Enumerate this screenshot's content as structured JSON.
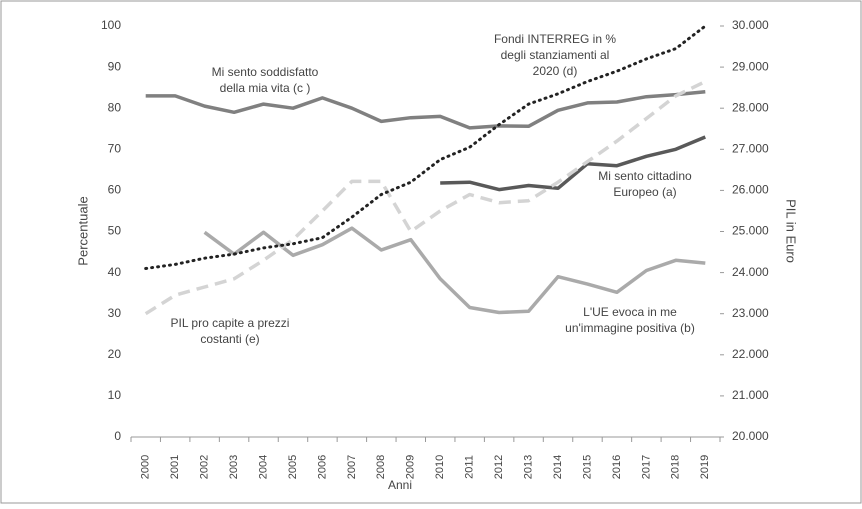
{
  "chart_data": {
    "type": "line",
    "xlabel": "Anni",
    "ylabel": "Percentuale",
    "y2label": "PIL in Euro",
    "categories": [
      "2000",
      "2001",
      "2002",
      "2003",
      "2004",
      "2005",
      "2006",
      "2007",
      "2008",
      "2009",
      "2010",
      "2011",
      "2012",
      "2013",
      "2014",
      "2015",
      "2016",
      "2017",
      "2018",
      "2019"
    ],
    "ylim": [
      0,
      100
    ],
    "yticks": [
      0,
      10,
      20,
      30,
      40,
      50,
      60,
      70,
      80,
      90,
      100
    ],
    "y2lim": [
      20000,
      30000
    ],
    "y2ticks": [
      {
        "value": 20000,
        "label": "20.000"
      },
      {
        "value": 21000,
        "label": "21.000"
      },
      {
        "value": 22000,
        "label": "22.000"
      },
      {
        "value": 23000,
        "label": "23.000"
      },
      {
        "value": 24000,
        "label": "24.000"
      },
      {
        "value": 25000,
        "label": "25.000"
      },
      {
        "value": 26000,
        "label": "26.000"
      },
      {
        "value": 27000,
        "label": "27.000"
      },
      {
        "value": 28000,
        "label": "28.000"
      },
      {
        "value": 29000,
        "label": "29.000"
      },
      {
        "value": 30000,
        "label": "30.000"
      }
    ],
    "series": [
      {
        "color": "#808080",
        "style": "solid",
        "values": [
          83,
          83,
          80.5,
          79,
          81,
          80,
          82.5,
          80,
          76.8,
          77.7,
          78,
          75.2,
          75.7,
          75.6,
          79.5,
          81.3,
          81.5,
          82.8,
          83.3,
          84
        ]
      },
      {
        "color": "#595959",
        "style": "solid",
        "values": [
          null,
          null,
          null,
          null,
          null,
          null,
          null,
          null,
          null,
          null,
          61.8,
          62,
          60.2,
          61.2,
          60.5,
          66.5,
          66,
          68.3,
          70,
          73
        ]
      },
      {
        "color": "#aaaaaa",
        "style": "solid",
        "values": [
          null,
          null,
          49.8,
          44.5,
          49.8,
          44.2,
          46.8,
          50.8,
          45.5,
          48,
          38.5,
          31.5,
          30.3,
          30.6,
          39,
          37.2,
          35.2,
          40.5,
          43,
          42.3
        ]
      },
      {
        "color": "#d4d4d4",
        "style": "dashed",
        "axis": "y2",
        "values": [
          23000,
          23450,
          23650,
          23850,
          24300,
          24800,
          25500,
          26220,
          26220,
          25000,
          25500,
          25900,
          25700,
          25750,
          26200,
          26700,
          27200,
          27750,
          28300,
          28650
        ]
      },
      {
        "color": "#222222",
        "style": "dotted",
        "values": [
          41,
          42,
          43.5,
          44.5,
          46,
          47,
          48.5,
          53.5,
          59,
          62,
          67.5,
          70.5,
          76,
          81,
          83.5,
          86.5,
          89,
          92,
          94.5,
          100
        ]
      }
    ],
    "annotations": [
      [
        "Mi sento soddisfatto",
        "della mia vita (c )"
      ],
      [
        "Mi sento cittadino",
        "Europeo (a)"
      ],
      [
        "L'UE evoca in me",
        "un'immagine positiva (b)"
      ],
      [
        "PIL pro capite a prezzi",
        "costanti (e)"
      ],
      [
        "Fondi INTERREG in %",
        "degli stanziamenti al",
        "2020 (d)"
      ]
    ]
  }
}
